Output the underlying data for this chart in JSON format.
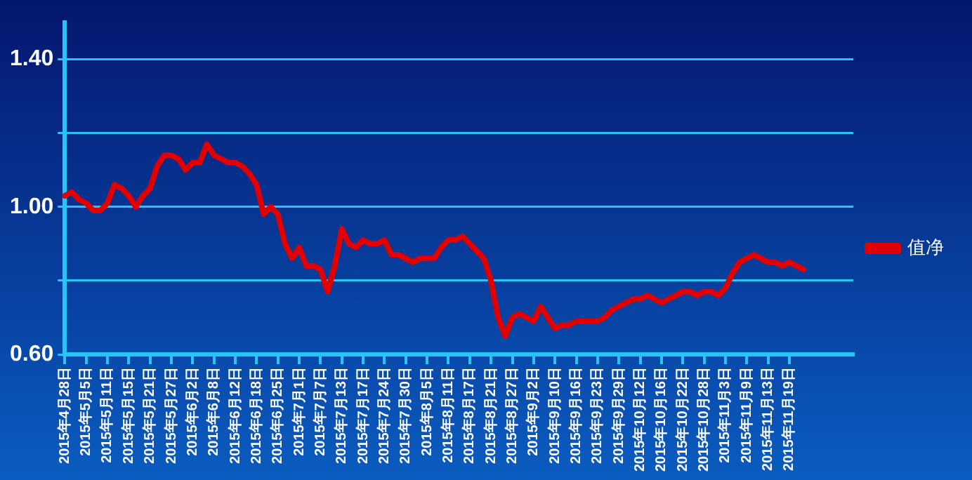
{
  "chart_data": {
    "type": "line",
    "categories": [
      "2015年4月28日",
      null,
      null,
      "2015年5月5日",
      null,
      null,
      "2015年5月11日",
      null,
      null,
      "2015年5月15日",
      null,
      null,
      "2015年5月21日",
      null,
      null,
      "2015年5月27日",
      null,
      null,
      "2015年6月2日",
      null,
      null,
      "2015年6月8日",
      null,
      null,
      "2015年6月12日",
      null,
      null,
      "2015年6月18日",
      null,
      null,
      "2015年6月25日",
      null,
      null,
      "2015年7月1日",
      null,
      null,
      "2015年7月7日",
      null,
      null,
      "2015年7月13日",
      null,
      null,
      "2015年7月17日",
      null,
      null,
      "2015年7月24日",
      null,
      null,
      "2015年7月30日",
      null,
      null,
      "2015年8月5日",
      null,
      null,
      "2015年8月11日",
      null,
      null,
      "2015年8月17日",
      null,
      null,
      "2015年8月21日",
      null,
      null,
      "2015年8月27日",
      null,
      null,
      "2015年9月2日",
      null,
      null,
      "2015年9月10日",
      null,
      null,
      "2015年9月16日",
      null,
      null,
      "2015年9月23日",
      null,
      null,
      "2015年9月29日",
      null,
      null,
      "2015年10月12日",
      null,
      null,
      "2015年10月16日",
      null,
      null,
      "2015年10月22日",
      null,
      null,
      "2015年10月28日",
      null,
      null,
      "2015年11月3日",
      null,
      null,
      "2015年11月9日",
      null,
      null,
      "2015年11月13日",
      null,
      null,
      "2015年11月19日",
      null,
      null,
      null,
      null,
      null,
      null,
      null,
      null,
      null
    ],
    "series": [
      {
        "name": "值净",
        "color": "#e00000",
        "values": [
          1.03,
          1.04,
          1.02,
          1.01,
          0.99,
          0.99,
          1.01,
          1.06,
          1.05,
          1.03,
          1.0,
          1.03,
          1.05,
          1.11,
          1.14,
          1.14,
          1.13,
          1.1,
          1.12,
          1.12,
          1.17,
          1.14,
          1.13,
          1.12,
          1.12,
          1.11,
          1.09,
          1.06,
          0.98,
          1.0,
          0.98,
          0.9,
          0.86,
          0.89,
          0.84,
          0.84,
          0.83,
          0.77,
          0.84,
          0.94,
          0.9,
          0.89,
          0.91,
          0.9,
          0.9,
          0.91,
          0.87,
          0.87,
          0.86,
          0.85,
          0.86,
          0.86,
          0.86,
          0.89,
          0.91,
          0.91,
          0.92,
          0.9,
          0.88,
          0.86,
          0.8,
          0.7,
          0.65,
          0.7,
          0.71,
          0.7,
          0.69,
          0.73,
          0.7,
          0.67,
          0.68,
          0.68,
          0.69,
          0.69,
          0.69,
          0.69,
          0.7,
          0.72,
          0.73,
          0.74,
          0.75,
          0.75,
          0.76,
          0.75,
          0.74,
          0.75,
          0.76,
          0.77,
          0.77,
          0.76,
          0.77,
          0.77,
          0.76,
          0.78,
          0.82,
          0.85,
          0.86,
          0.87,
          0.86,
          0.85,
          0.85,
          0.84,
          0.85,
          0.84,
          0.83,
          null,
          null,
          null,
          null,
          null,
          null,
          null
        ]
      }
    ],
    "ylim": [
      0.6,
      1.5
    ],
    "yticks": [
      {
        "value": 0.6,
        "label": "0.60"
      },
      {
        "value": 0.8,
        "label": null
      },
      {
        "value": 1.0,
        "label": "1.00"
      },
      {
        "value": 1.2,
        "label": null
      },
      {
        "value": 1.4,
        "label": "1.40"
      }
    ],
    "grid": "y",
    "legend": "right",
    "marker": "none",
    "line_style": "solid"
  }
}
